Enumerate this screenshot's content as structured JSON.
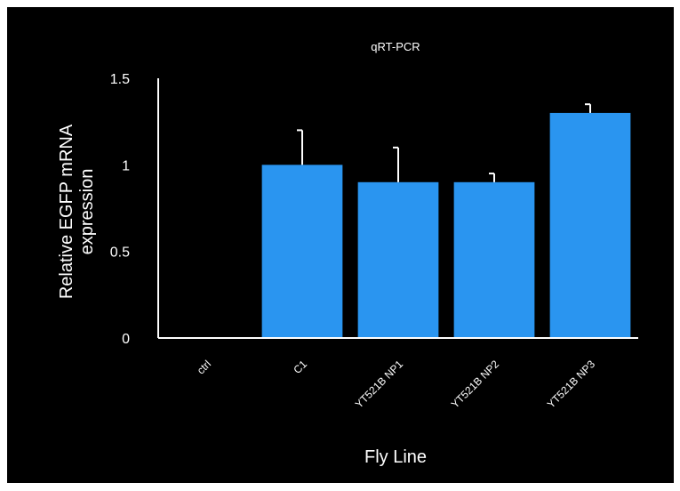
{
  "chart_data": {
    "type": "bar",
    "title": "qRT-PCR",
    "xlabel": "Fly Line",
    "ylabel_lines": [
      "Relative EGFP mRNA",
      "expression"
    ],
    "categories": [
      "ctrl",
      "C1",
      "YT521B NP1",
      "YT521B NP2",
      "YT521B NP3"
    ],
    "values": [
      0,
      1.0,
      0.9,
      0.9,
      1.3
    ],
    "errors": [
      0,
      0.2,
      0.2,
      0.05,
      0.05
    ],
    "ylim": [
      0,
      1.5
    ],
    "yticks": [
      0,
      0.5,
      1,
      1.5
    ],
    "ytick_labels": [
      "0",
      "0.5",
      "1",
      "1.5"
    ],
    "grid": false,
    "legend": false,
    "colors": {
      "bar": "#2a95f0",
      "background": "#000000",
      "axis": "#ffffff",
      "text": "#ffffff",
      "frame": "#ffffff"
    }
  }
}
